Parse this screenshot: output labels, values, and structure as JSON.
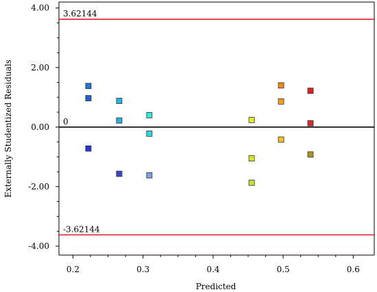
{
  "chart_data": {
    "type": "scatter",
    "xlabel": "Predicted",
    "ylabel": "Externally Studentized Residuals",
    "xlim": [
      0.18,
      0.63
    ],
    "ylim": [
      -4.3,
      4.2
    ],
    "x_ticks": [
      0.2,
      0.3,
      0.4,
      0.5,
      0.6
    ],
    "x_tick_labels": [
      "0.2",
      "0.3",
      "0.4",
      "0.5",
      "0.6"
    ],
    "y_ticks": [
      4,
      2,
      0,
      -2,
      -4
    ],
    "y_tick_labels": [
      "4.00",
      "2.00",
      "0.00",
      "-2.00",
      "-4.00"
    ],
    "reference_lines": [
      {
        "y": 3.62144,
        "label": "3.62144",
        "color": "#e8202a"
      },
      {
        "y": 0,
        "label": "0",
        "color": "#000000"
      },
      {
        "y": -3.62144,
        "label": "-3.62144",
        "color": "#e8202a"
      }
    ],
    "grid": false,
    "points": [
      {
        "x": 0.222,
        "y": 1.38,
        "color": "#1f74d8"
      },
      {
        "x": 0.222,
        "y": 0.97,
        "color": "#1f5fd0"
      },
      {
        "x": 0.222,
        "y": -0.72,
        "color": "#2a35d8"
      },
      {
        "x": 0.266,
        "y": 0.88,
        "color": "#26b4e8"
      },
      {
        "x": 0.266,
        "y": 0.22,
        "color": "#2ab0e0"
      },
      {
        "x": 0.266,
        "y": -1.57,
        "color": "#3a46d2"
      },
      {
        "x": 0.309,
        "y": 0.4,
        "color": "#34e8e0"
      },
      {
        "x": 0.309,
        "y": -0.22,
        "color": "#30d8dc"
      },
      {
        "x": 0.309,
        "y": -1.62,
        "color": "#7aa0e0"
      },
      {
        "x": 0.455,
        "y": 0.24,
        "color": "#e4ea30"
      },
      {
        "x": 0.455,
        "y": -1.05,
        "color": "#d8e42a"
      },
      {
        "x": 0.455,
        "y": -1.87,
        "color": "#c8e030"
      },
      {
        "x": 0.497,
        "y": 1.4,
        "color": "#f08a18"
      },
      {
        "x": 0.497,
        "y": 0.86,
        "color": "#f0a020"
      },
      {
        "x": 0.497,
        "y": -0.42,
        "color": "#eec028"
      },
      {
        "x": 0.539,
        "y": 1.22,
        "color": "#e81e1e"
      },
      {
        "x": 0.539,
        "y": 0.13,
        "color": "#e02828"
      },
      {
        "x": 0.539,
        "y": -0.92,
        "color": "#b09028"
      }
    ]
  }
}
